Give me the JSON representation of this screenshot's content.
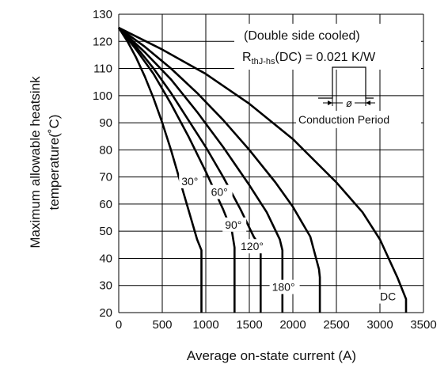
{
  "chart_data": {
    "type": "line",
    "xlabel": "Average on-state current (A)",
    "ylabel_line1": "Maximum allowable heatsink",
    "ylabel_line2": "temperature(˚C)",
    "xlim": [
      0,
      3500
    ],
    "ylim": [
      20,
      130
    ],
    "x_ticks": [
      0,
      500,
      1000,
      1500,
      2000,
      2500,
      3000,
      3500
    ],
    "y_ticks": [
      20,
      30,
      40,
      50,
      60,
      70,
      80,
      90,
      100,
      110,
      120,
      130
    ],
    "grid": true,
    "annotation": {
      "condition": "(Double side cooled)",
      "resistance_prefix": "R",
      "resistance_subscript": "thJ-hs",
      "resistance_suffix": "(DC) = 0.021 K/W",
      "phi_symbol": "ø",
      "waveform_label": "Conduction Period"
    },
    "series": [
      {
        "name": "30°",
        "points": [
          [
            0,
            125
          ],
          [
            100,
            120
          ],
          [
            200,
            114
          ],
          [
            300,
            107
          ],
          [
            400,
            99
          ],
          [
            500,
            90
          ],
          [
            600,
            80
          ],
          [
            700,
            69
          ],
          [
            800,
            58
          ],
          [
            900,
            47
          ],
          [
            950,
            43
          ],
          [
            950,
            20
          ]
        ]
      },
      {
        "name": "60°",
        "points": [
          [
            0,
            125
          ],
          [
            200,
            117
          ],
          [
            400,
            108
          ],
          [
            600,
            97
          ],
          [
            800,
            85
          ],
          [
            1000,
            72
          ],
          [
            1200,
            58
          ],
          [
            1300,
            50
          ],
          [
            1330,
            44
          ],
          [
            1330,
            20
          ]
        ]
      },
      {
        "name": "90°",
        "points": [
          [
            0,
            125
          ],
          [
            200,
            118
          ],
          [
            400,
            110
          ],
          [
            600,
            101
          ],
          [
            800,
            91
          ],
          [
            1000,
            81
          ],
          [
            1200,
            70
          ],
          [
            1400,
            58
          ],
          [
            1550,
            48
          ],
          [
            1630,
            44
          ],
          [
            1630,
            20
          ]
        ]
      },
      {
        "name": "120°",
        "points": [
          [
            0,
            125
          ],
          [
            300,
            116
          ],
          [
            600,
            106
          ],
          [
            900,
            94
          ],
          [
            1200,
            81
          ],
          [
            1500,
            67
          ],
          [
            1700,
            57
          ],
          [
            1850,
            47
          ],
          [
            1880,
            43
          ],
          [
            1880,
            20
          ]
        ]
      },
      {
        "name": "180°",
        "points": [
          [
            0,
            125
          ],
          [
            300,
            118
          ],
          [
            600,
            110
          ],
          [
            900,
            101
          ],
          [
            1200,
            91
          ],
          [
            1500,
            80
          ],
          [
            1800,
            68
          ],
          [
            2000,
            59
          ],
          [
            2200,
            48
          ],
          [
            2300,
            36
          ],
          [
            2310,
            33
          ],
          [
            2310,
            20
          ]
        ]
      },
      {
        "name": "DC",
        "points": [
          [
            0,
            125
          ],
          [
            500,
            117
          ],
          [
            1000,
            108
          ],
          [
            1500,
            97
          ],
          [
            2000,
            84
          ],
          [
            2500,
            68
          ],
          [
            2800,
            57
          ],
          [
            3000,
            47
          ],
          [
            3200,
            33
          ],
          [
            3300,
            25
          ],
          [
            3300,
            20
          ]
        ]
      }
    ]
  }
}
